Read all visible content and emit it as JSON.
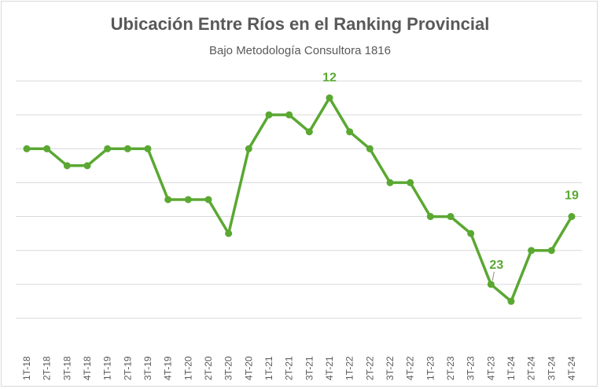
{
  "chart_data": {
    "type": "line",
    "title": "Ubicación Entre Ríos en el Ranking Provincial",
    "subtitle": "Bajo Metodología Consultora 1816",
    "xlabel": "",
    "ylabel": "",
    "categories": [
      "1T-18",
      "2T-18",
      "3T-18",
      "4T-18",
      "1T-19",
      "2T-19",
      "3T-19",
      "4T-19",
      "1T-20",
      "2T-20",
      "3T-20",
      "4T-20",
      "1T-21",
      "2T-21",
      "3T-21",
      "4T-21",
      "1T-22",
      "2T-22",
      "3T-22",
      "4T-22",
      "1T-23",
      "2T-23",
      "3T-23",
      "4T-23",
      "1T-24",
      "2T-24",
      "3T-24",
      "4T-24"
    ],
    "series": [
      {
        "values": [
          15,
          15,
          16,
          16,
          15,
          15,
          15,
          18,
          18,
          18,
          20,
          15,
          13,
          13,
          14,
          12,
          14,
          15,
          17,
          17,
          19,
          19,
          20,
          23,
          24,
          21,
          21,
          19
        ]
      }
    ],
    "data_labels": [
      {
        "index": 15,
        "text": "12"
      },
      {
        "index": 23,
        "text": "23"
      },
      {
        "index": 27,
        "text": "19"
      }
    ],
    "ylim": [
      25,
      11
    ],
    "y_reversed": true,
    "y_axis_labels_visible": false,
    "grid": true,
    "legend": "none",
    "colors": {
      "line": "#5aa832",
      "label": "#5aa832",
      "grid": "#d9d9d9",
      "text": "#595959"
    }
  }
}
